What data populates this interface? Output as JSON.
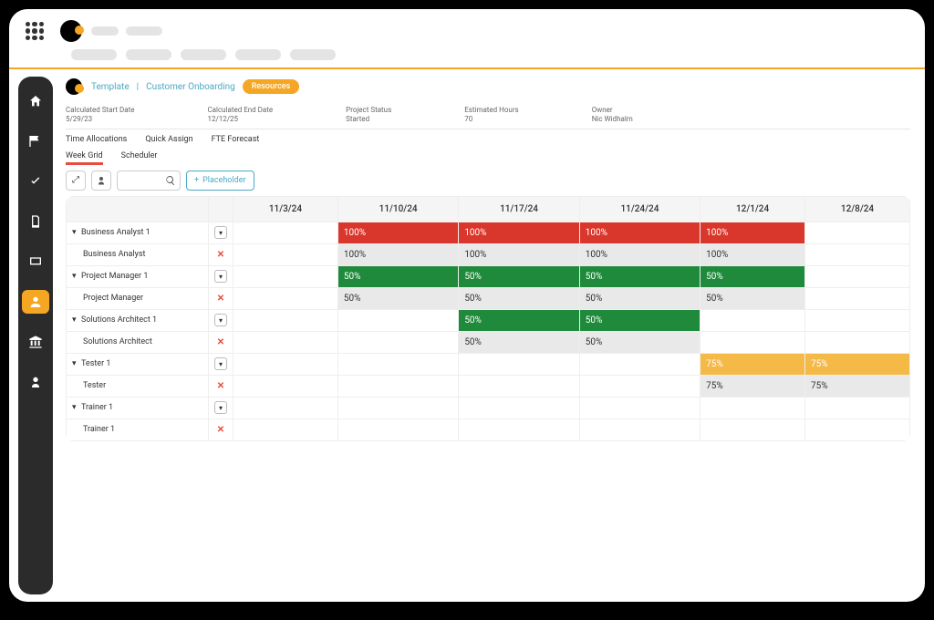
{
  "breadcrumb": {
    "item1": "Template",
    "item2": "Customer Onboarding"
  },
  "badge": "Resources",
  "meta": {
    "start_lbl": "Calculated Start Date",
    "start_val": "5/29/23",
    "end_lbl": "Calculated End Date",
    "end_val": "12/12/25",
    "status_lbl": "Project Status",
    "status_val": "Started",
    "hours_lbl": "Estimated Hours",
    "hours_val": "70",
    "owner_lbl": "Owner",
    "owner_val": "Nic Widhalm"
  },
  "tabs1": {
    "a": "Time Allocations",
    "b": "Quick Assign",
    "c": "FTE Forecast"
  },
  "tabs2": {
    "a": "Week Grid",
    "b": "Scheduler"
  },
  "toolbar": {
    "placeholder_btn": "Placeholder"
  },
  "columns": [
    "11/3/24",
    "11/10/24",
    "11/17/24",
    "11/24/24",
    "12/1/24",
    "12/8/24"
  ],
  "colors": {
    "red": "#d9372b",
    "green": "#1f8a3b",
    "orange": "#f5b947",
    "grey": "#e9e9e9",
    "accent": "#f5a623",
    "link": "#4aa9c4"
  },
  "rows": [
    {
      "type": "role",
      "label": "Business Analyst 1",
      "cells": [
        null,
        {
          "v": "100%",
          "c": "red"
        },
        {
          "v": "100%",
          "c": "red"
        },
        {
          "v": "100%",
          "c": "red"
        },
        {
          "v": "100%",
          "c": "red"
        },
        null
      ]
    },
    {
      "type": "sub",
      "label": "Business Analyst",
      "cells": [
        null,
        {
          "v": "100%",
          "c": "grey"
        },
        {
          "v": "100%",
          "c": "grey"
        },
        {
          "v": "100%",
          "c": "grey"
        },
        {
          "v": "100%",
          "c": "grey"
        },
        null
      ]
    },
    {
      "type": "role",
      "label": "Project Manager 1",
      "cells": [
        null,
        {
          "v": "50%",
          "c": "green"
        },
        {
          "v": "50%",
          "c": "green"
        },
        {
          "v": "50%",
          "c": "green"
        },
        {
          "v": "50%",
          "c": "green"
        },
        null
      ]
    },
    {
      "type": "sub",
      "label": "Project Manager",
      "cells": [
        null,
        {
          "v": "50%",
          "c": "grey"
        },
        {
          "v": "50%",
          "c": "grey"
        },
        {
          "v": "50%",
          "c": "grey"
        },
        {
          "v": "50%",
          "c": "grey"
        },
        null
      ]
    },
    {
      "type": "role",
      "label": "Solutions Architect 1",
      "cells": [
        null,
        null,
        {
          "v": "50%",
          "c": "green"
        },
        {
          "v": "50%",
          "c": "green"
        },
        null,
        null
      ]
    },
    {
      "type": "sub",
      "label": "Solutions Architect",
      "cells": [
        null,
        null,
        {
          "v": "50%",
          "c": "grey"
        },
        {
          "v": "50%",
          "c": "grey"
        },
        null,
        null
      ]
    },
    {
      "type": "role",
      "label": "Tester 1",
      "cells": [
        null,
        null,
        null,
        null,
        {
          "v": "75%",
          "c": "orange"
        },
        {
          "v": "75%",
          "c": "orange"
        }
      ]
    },
    {
      "type": "sub",
      "label": "Tester",
      "cells": [
        null,
        null,
        null,
        null,
        {
          "v": "75%",
          "c": "grey"
        },
        {
          "v": "75%",
          "c": "grey"
        }
      ]
    },
    {
      "type": "role",
      "label": "Trainer 1",
      "cells": [
        null,
        null,
        null,
        null,
        null,
        null
      ]
    },
    {
      "type": "sub",
      "label": "Trainer 1",
      "cells": [
        null,
        null,
        null,
        null,
        null,
        null
      ]
    }
  ]
}
